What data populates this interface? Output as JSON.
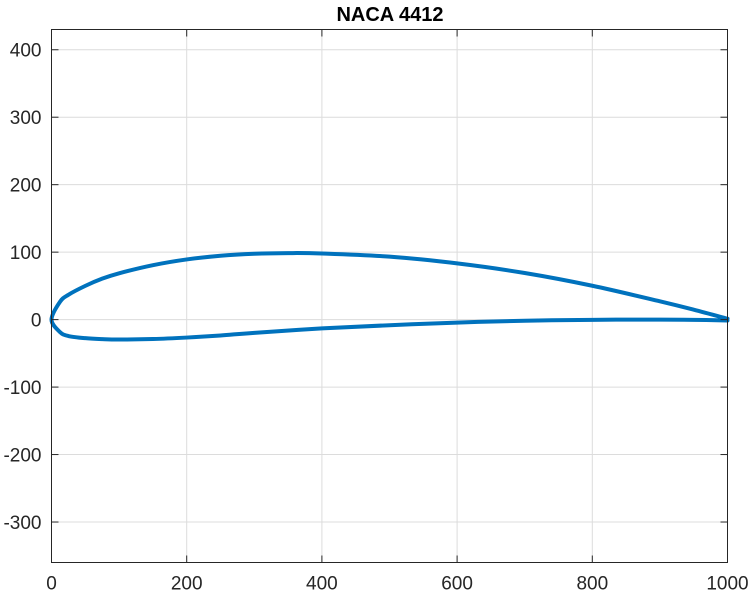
{
  "chart_data": {
    "type": "line",
    "title": "NACA 4412",
    "xlabel": "",
    "ylabel": "",
    "xlim": [
      0,
      1000
    ],
    "ylim": [
      -360,
      430
    ],
    "xticks": [
      0,
      200,
      400,
      600,
      800,
      1000
    ],
    "xtick_labels": [
      "0",
      "200",
      "400",
      "600",
      "800",
      "1000"
    ],
    "yticks": [
      -300,
      -200,
      -100,
      0,
      100,
      200,
      300,
      400
    ],
    "ytick_labels": [
      "-300",
      "-200",
      "-100",
      "0",
      "100",
      "200",
      "300",
      "400"
    ],
    "grid": true,
    "series": [
      {
        "color": "#0072BD",
        "x": [
          1000,
          950,
          900,
          800,
          700,
          600,
          500,
          400,
          350,
          300,
          250,
          200,
          150,
          100,
          75,
          50,
          25,
          12.5,
          0,
          12.5,
          25,
          50,
          75,
          100,
          150,
          200,
          250,
          300,
          400,
          500,
          600,
          700,
          800,
          900,
          950,
          1000
        ],
        "y": [
          1.3,
          14.7,
          27.1,
          50.2,
          69.1,
          83.3,
          93.3,
          98.0,
          98.6,
          97.6,
          94.6,
          89.2,
          80.7,
          68.7,
          60.7,
          50.0,
          36.8,
          26.3,
          0,
          -18.4,
          -24.3,
          -27.5,
          -28.9,
          -29.5,
          -28.8,
          -26.6,
          -23.5,
          -19.6,
          -13.0,
          -8.3,
          -4.4,
          -1.7,
          -0.3,
          0,
          -0.3,
          -1.3
        ]
      }
    ]
  }
}
